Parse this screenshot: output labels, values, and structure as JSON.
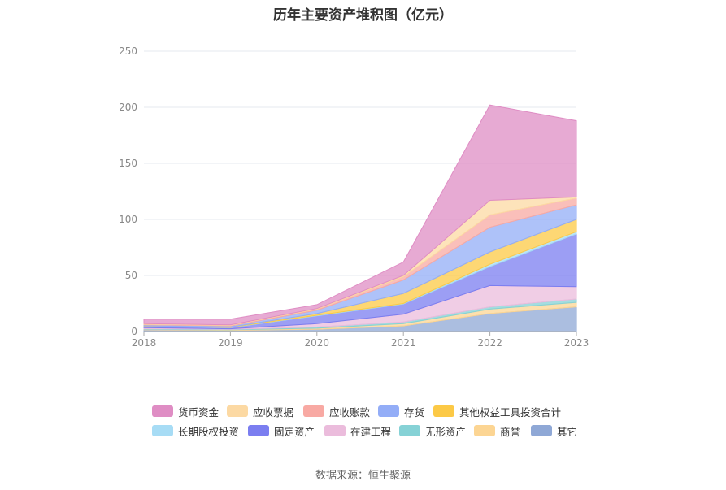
{
  "chart_data": {
    "type": "area",
    "stacked": true,
    "title": "历年主要资产堆积图（亿元）",
    "x": [
      "2018",
      "2019",
      "2020",
      "2021",
      "2022",
      "2023"
    ],
    "ylim": [
      0,
      250
    ],
    "yticks": [
      "0",
      "50",
      "100",
      "150",
      "200",
      "250"
    ],
    "grid": true,
    "legend_position": "bottom",
    "series": [
      {
        "name": "其它",
        "color": "#8fa8d6",
        "values": [
          1.5,
          1,
          2,
          5,
          16,
          22
        ]
      },
      {
        "name": "商誉",
        "color": "#fcd593",
        "values": [
          0.5,
          0.5,
          1,
          2,
          4,
          4
        ]
      },
      {
        "name": "无形资产",
        "color": "#86d2d6",
        "values": [
          0.5,
          0.5,
          1,
          1.5,
          2,
          3
        ]
      },
      {
        "name": "在建工程",
        "color": "#ebbcdc",
        "values": [
          1,
          0.5,
          3,
          7,
          19,
          11
        ]
      },
      {
        "name": "固定资产",
        "color": "#7b7ef0",
        "values": [
          1,
          1,
          7,
          9,
          17,
          47
        ]
      },
      {
        "name": "长期股权投资",
        "color": "#a7dcf5",
        "values": [
          0.2,
          0.2,
          0.5,
          0.5,
          2,
          2
        ]
      },
      {
        "name": "其他权益工具投资合计",
        "color": "#fcc946",
        "values": [
          0.3,
          0.3,
          1.5,
          9,
          11,
          11
        ]
      },
      {
        "name": "存货",
        "color": "#93adf7",
        "values": [
          1,
          1,
          3,
          12,
          22,
          13
        ]
      },
      {
        "name": "应收账款",
        "color": "#f8a9a3",
        "values": [
          0.5,
          0.5,
          1,
          3,
          11,
          6
        ]
      },
      {
        "name": "应收票据",
        "color": "#fcd9a3",
        "values": [
          0.5,
          0.5,
          0.5,
          1,
          13,
          1
        ]
      },
      {
        "name": "货币资金",
        "color": "#df8dc4",
        "values": [
          4,
          5,
          3.5,
          12,
          85,
          68
        ]
      }
    ]
  },
  "legend_rows": [
    [
      "货币资金",
      "应收票据",
      "应收账款",
      "存货",
      "其他权益工具投资合计"
    ],
    [
      "长期股权投资",
      "固定资产",
      "在建工程",
      "无形资产",
      "商誉",
      "其它"
    ]
  ],
  "source": "数据来源：恒生聚源"
}
